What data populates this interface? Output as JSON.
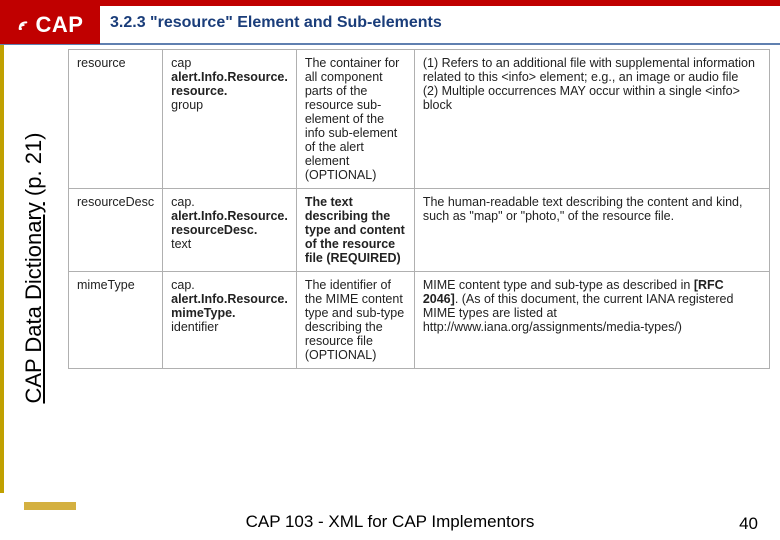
{
  "header": {
    "logo_text": "CAP",
    "section_title": "3.2.3 \"resource\" Element and Sub-elements"
  },
  "side_label": {
    "prefix": "CAP Data Dictionary",
    "suffix": " (p. 21)"
  },
  "table": {
    "rows": [
      {
        "name": "resource",
        "path": [
          "cap",
          "alert.Info.Resource.",
          "resource.",
          "group"
        ],
        "desc": "The container for all component parts of the resource sub-element of the info sub-element of the alert element (OPTIONAL)",
        "notes": "(1) Refers to an additional file with supplemental information related to this <info> element; e.g., an image or audio file\n(2) Multiple occurrences MAY occur within a single <info> block",
        "desc_bold": false
      },
      {
        "name": "resourceDesc",
        "path": [
          "cap.",
          "alert.Info.Resource.",
          "resourceDesc.",
          "text"
        ],
        "desc": "The text describing the type and content of the resource file (REQUIRED)",
        "notes": "The human-readable text describing the content and kind, such as \"map\" or \"photo,\" of the resource file.",
        "desc_bold": true
      },
      {
        "name": "mimeType",
        "path": [
          "cap.",
          "alert.Info.Resource.",
          "mimeType.",
          "identifier"
        ],
        "desc": "The identifier of the MIME content type and sub-type describing the resource file (OPTIONAL)",
        "notes": "MIME content type and sub-type as described in [RFC 2046]. (As of this document, the current IANA registered MIME types are listed at http://www.iana.org/assignments/media-types/)",
        "desc_bold": false
      }
    ]
  },
  "footer": {
    "text": "CAP 103 - XML for CAP Implementors",
    "page": "40"
  },
  "colors": {
    "cap_red": "#c00000",
    "title_blue": "#1a3d7a",
    "border_gray": "#b0b0b0",
    "accent_gold": "#d4b040"
  }
}
